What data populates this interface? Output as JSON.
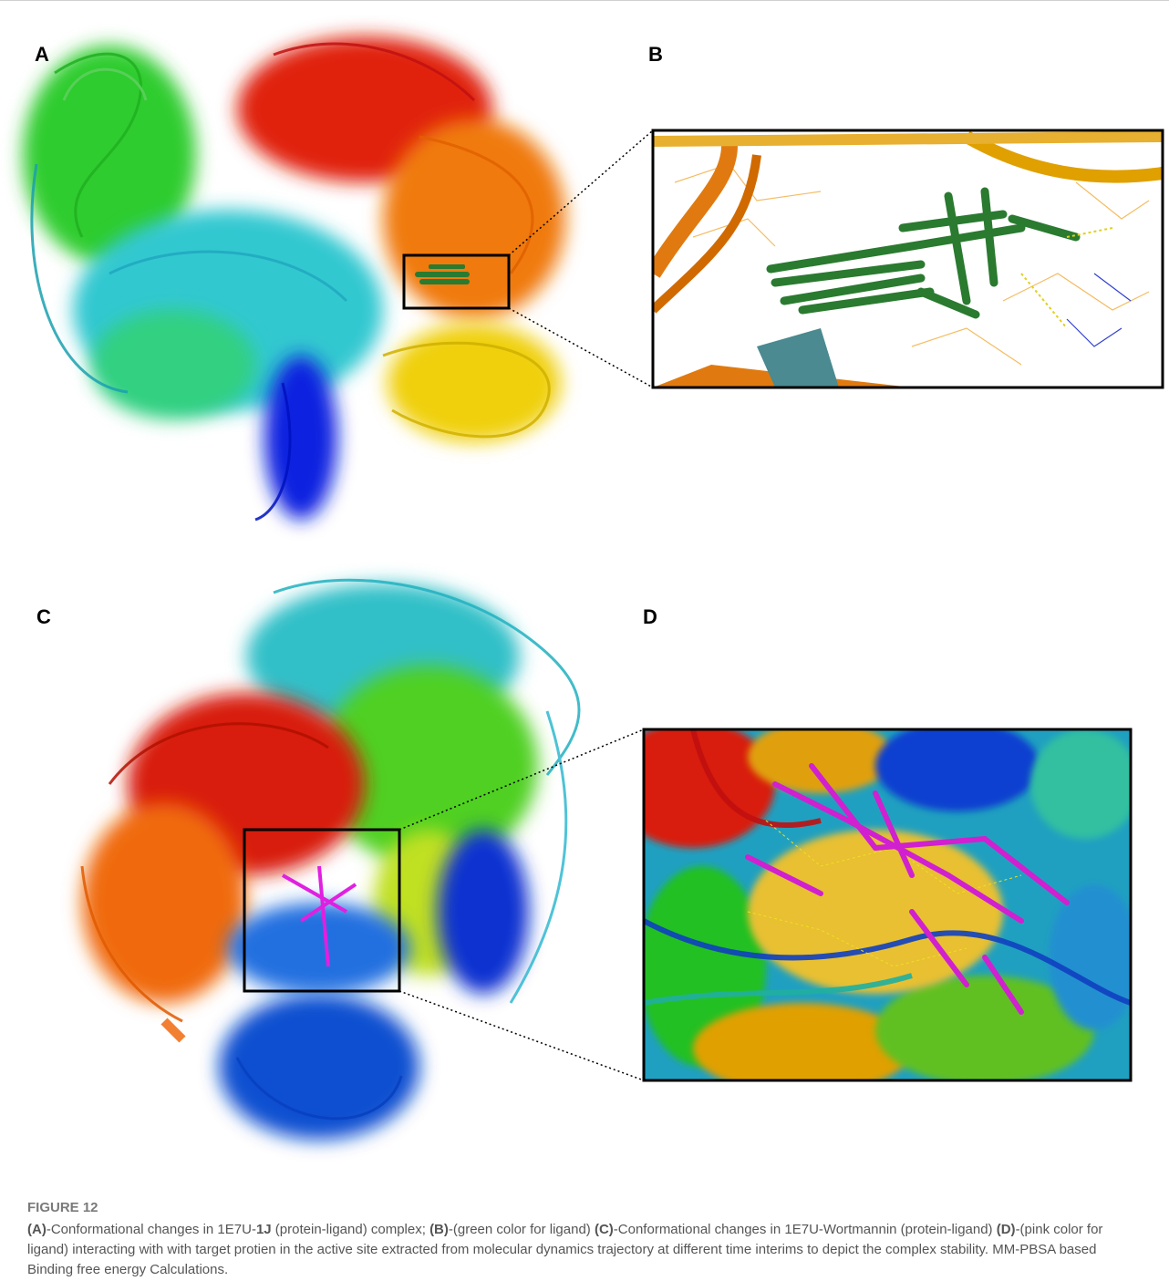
{
  "panel_labels": [
    "A",
    "B",
    "C",
    "D"
  ],
  "caption": {
    "title": "FIGURE 12",
    "runs": [
      {
        "text": "(A)",
        "bold": true
      },
      {
        "text": "-Conformational changes in 1E7U-",
        "bold": false
      },
      {
        "text": "1J",
        "bold": true
      },
      {
        "text": " (protein-ligand) complex; ",
        "bold": false
      },
      {
        "text": "(B)",
        "bold": true
      },
      {
        "text": "-(green color for ligand) ",
        "bold": false
      },
      {
        "text": "(C)",
        "bold": true
      },
      {
        "text": "-Conformational changes in 1E7U-Wortmannin (protein-ligand) ",
        "bold": false
      },
      {
        "text": "(D)",
        "bold": true
      },
      {
        "text": "-(pink color for ligand) interacting with with target protien in the active site extracted from molecular dynamics trajectory at different time interims to depict the complex stability. MM-PBSA based Binding free energy Calculations.",
        "bold": false
      }
    ]
  }
}
